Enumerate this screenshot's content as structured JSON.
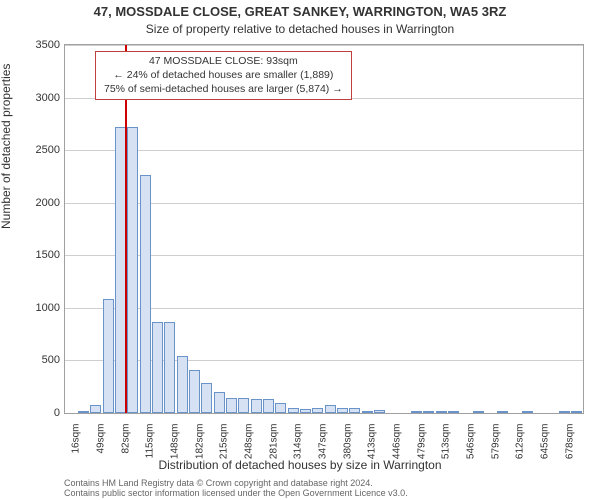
{
  "title": "47, MOSSDALE CLOSE, GREAT SANKEY, WARRINGTON, WA5 3RZ",
  "subtitle": "Size of property relative to detached houses in Warrington",
  "y_axis": {
    "title": "Number of detached properties",
    "min": 0,
    "max": 3500,
    "tick_step": 500,
    "ticks": [
      0,
      500,
      1000,
      1500,
      2000,
      2500,
      3000,
      3500
    ]
  },
  "x_axis": {
    "title": "Distribution of detached houses by size in Warrington",
    "labels": [
      "16sqm",
      "49sqm",
      "82sqm",
      "115sqm",
      "148sqm",
      "182sqm",
      "215sqm",
      "248sqm",
      "281sqm",
      "314sqm",
      "347sqm",
      "380sqm",
      "413sqm",
      "446sqm",
      "479sqm",
      "513sqm",
      "546sqm",
      "579sqm",
      "612sqm",
      "645sqm",
      "678sqm"
    ],
    "label_every": 2
  },
  "bars": {
    "fill": "#d6e2f3",
    "stroke": "#6a93c9",
    "gap_ratio": 0.12,
    "values": [
      0,
      20,
      80,
      1080,
      2720,
      2720,
      2260,
      870,
      870,
      540,
      410,
      290,
      200,
      145,
      145,
      130,
      130,
      100,
      50,
      40,
      50,
      80,
      50,
      50,
      20,
      30,
      0,
      0,
      20,
      20,
      10,
      10,
      0,
      10,
      0,
      20,
      0,
      10,
      0,
      0,
      10,
      10
    ]
  },
  "marker": {
    "color": "#cc0000",
    "value_sqm": 93,
    "range_min_sqm": 16,
    "range_max_sqm": 678
  },
  "annotation": {
    "border_color": "#c04040",
    "lines": [
      "47 MOSSDALE CLOSE: 93sqm",
      "← 24% of detached houses are smaller (1,889)",
      "75% of semi-detached houses are larger (5,874) →"
    ]
  },
  "credits": {
    "line1": "Contains HM Land Registry data © Crown copyright and database right 2024.",
    "line2": "Contains public sector information licensed under the Open Government Licence v3.0."
  },
  "style": {
    "background": "#ffffff",
    "grid_color": "#cfcfcf",
    "axis_color": "#a0a0a0",
    "text_color": "#333333",
    "title_fontsize_pt": 13,
    "subtitle_fontsize_pt": 12,
    "axis_label_fontsize_pt": 12,
    "tick_fontsize_pt": 11,
    "xtick_fontsize_pt": 10,
    "anno_fontsize_pt": 10.5,
    "credits_fontsize_pt": 9
  }
}
